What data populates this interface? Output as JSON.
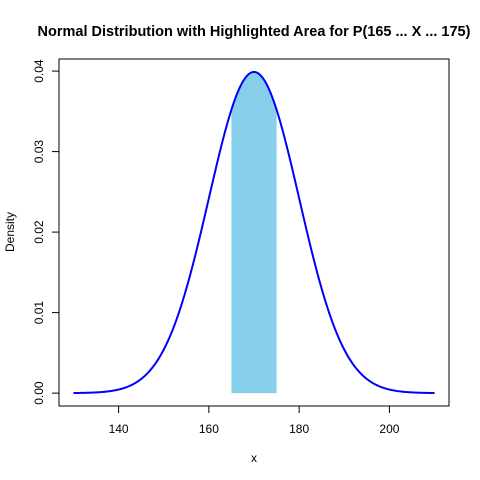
{
  "chart_data": {
    "type": "line",
    "title": "Normal Distribution with Highlighted Area for P(165 ... X ... 175)",
    "xlabel": "x",
    "ylabel": "Density",
    "distribution": {
      "mean": 170,
      "sd": 10
    },
    "series": [
      {
        "x_range": [
          130,
          210
        ],
        "color": "#0000ff"
      }
    ],
    "highlight": {
      "from": 165,
      "to": 175,
      "color": "#87ceeb"
    },
    "xlim": [
      126.8,
      213.2
    ],
    "ylim": [
      -0.0016,
      0.0415
    ],
    "x_ticks": [
      140,
      160,
      180,
      200
    ],
    "y_ticks": [
      0.0,
      0.01,
      0.02,
      0.03,
      0.04
    ],
    "x_tick_labels": [
      "140",
      "160",
      "180",
      "200"
    ],
    "y_tick_labels": [
      "0.00",
      "0.01",
      "0.02",
      "0.03",
      "0.04"
    ],
    "grid": false,
    "legend": "none"
  }
}
